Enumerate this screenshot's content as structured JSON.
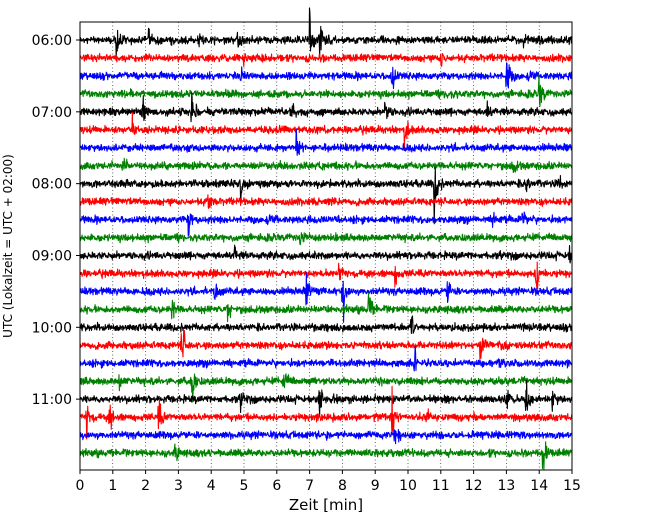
{
  "chart_data": {
    "type": "line",
    "xlabel": "Zeit  [min]",
    "ylabel": "UTC (Lokalzeit = UTC + 02:00)",
    "xlim": [
      0,
      15
    ],
    "x_ticks": [
      "0",
      "1",
      "2",
      "3",
      "4",
      "5",
      "6",
      "7",
      "8",
      "9",
      "10",
      "11",
      "12",
      "13",
      "14",
      "15"
    ],
    "y_tick_labels": [
      "06:00",
      "07:00",
      "08:00",
      "09:00",
      "10:00",
      "11:00"
    ],
    "grid": "vertical dotted lines at every minute",
    "trace_interval_minutes": 15,
    "trace_colors": [
      "#000000",
      "#ff0000",
      "#0000ff",
      "#008000"
    ],
    "traces": [
      {
        "start": "06:00",
        "color": "#000000",
        "events": [
          {
            "t": 1.1,
            "amp": 0.45
          },
          {
            "t": 2.1,
            "amp": 0.3
          },
          {
            "t": 3.6,
            "amp": 0.25
          },
          {
            "t": 4.8,
            "amp": 0.4
          },
          {
            "t": 7.0,
            "amp": 0.9
          },
          {
            "t": 7.3,
            "amp": 0.7
          },
          {
            "t": 13.5,
            "amp": 0.3
          }
        ]
      },
      {
        "start": "06:15",
        "color": "#ff0000",
        "events": [
          {
            "t": 5.0,
            "amp": 0.3
          },
          {
            "t": 11.0,
            "amp": 0.3
          }
        ]
      },
      {
        "start": "06:30",
        "color": "#0000ff",
        "events": [
          {
            "t": 4.9,
            "amp": 0.35
          },
          {
            "t": 9.5,
            "amp": 0.6
          },
          {
            "t": 13.0,
            "amp": 1.0
          }
        ]
      },
      {
        "start": "06:45",
        "color": "#008000",
        "events": [
          {
            "t": 11.2,
            "amp": 0.3
          },
          {
            "t": 14.0,
            "amp": 0.7
          }
        ]
      },
      {
        "start": "07:00",
        "color": "#000000",
        "events": [
          {
            "t": 1.9,
            "amp": 0.8
          },
          {
            "t": 3.4,
            "amp": 1.0
          },
          {
            "t": 6.4,
            "amp": 0.4
          },
          {
            "t": 9.3,
            "amp": 0.5
          },
          {
            "t": 12.4,
            "amp": 0.3
          }
        ]
      },
      {
        "start": "07:15",
        "color": "#ff0000",
        "events": [
          {
            "t": 1.6,
            "amp": 0.55
          },
          {
            "t": 9.9,
            "amp": 0.55
          }
        ]
      },
      {
        "start": "07:30",
        "color": "#0000ff",
        "events": [
          {
            "t": 6.6,
            "amp": 0.55
          }
        ]
      },
      {
        "start": "07:45",
        "color": "#008000",
        "events": [
          {
            "t": 1.3,
            "amp": 0.3
          },
          {
            "t": 13.2,
            "amp": 0.3
          }
        ]
      },
      {
        "start": "08:00",
        "color": "#000000",
        "events": [
          {
            "t": 4.9,
            "amp": 0.75
          },
          {
            "t": 10.8,
            "amp": 1.0
          },
          {
            "t": 13.6,
            "amp": 0.4
          },
          {
            "t": 14.6,
            "amp": 0.3
          }
        ]
      },
      {
        "start": "08:15",
        "color": "#ff0000",
        "events": [
          {
            "t": 3.9,
            "amp": 0.4
          }
        ]
      },
      {
        "start": "08:30",
        "color": "#0000ff",
        "events": [
          {
            "t": 3.3,
            "amp": 0.5
          },
          {
            "t": 12.6,
            "amp": 0.35
          },
          {
            "t": 13.5,
            "amp": 0.45
          }
        ]
      },
      {
        "start": "08:45",
        "color": "#008000",
        "events": [
          {
            "t": 6.7,
            "amp": 0.25
          }
        ]
      },
      {
        "start": "09:00",
        "color": "#000000",
        "events": [
          {
            "t": 4.7,
            "amp": 0.3
          },
          {
            "t": 14.9,
            "amp": 0.3
          }
        ]
      },
      {
        "start": "09:15",
        "color": "#ff0000",
        "events": [
          {
            "t": 7.9,
            "amp": 0.35
          },
          {
            "t": 9.6,
            "amp": 0.35
          },
          {
            "t": 13.9,
            "amp": 1.0
          }
        ]
      },
      {
        "start": "09:30",
        "color": "#0000ff",
        "events": [
          {
            "t": 4.1,
            "amp": 0.4
          },
          {
            "t": 6.9,
            "amp": 0.55
          },
          {
            "t": 8.0,
            "amp": 1.0
          },
          {
            "t": 11.2,
            "amp": 0.5
          }
        ]
      },
      {
        "start": "09:45",
        "color": "#008000",
        "events": [
          {
            "t": 2.8,
            "amp": 0.5
          },
          {
            "t": 4.5,
            "amp": 0.4
          },
          {
            "t": 8.8,
            "amp": 0.7
          }
        ]
      },
      {
        "start": "10:00",
        "color": "#000000",
        "events": [
          {
            "t": 10.1,
            "amp": 0.5
          }
        ]
      },
      {
        "start": "10:15",
        "color": "#ff0000",
        "events": [
          {
            "t": 3.1,
            "amp": 0.9
          },
          {
            "t": 12.2,
            "amp": 0.5
          }
        ]
      },
      {
        "start": "10:30",
        "color": "#0000ff",
        "events": [
          {
            "t": 10.2,
            "amp": 0.45
          }
        ]
      },
      {
        "start": "10:45",
        "color": "#008000",
        "events": [
          {
            "t": 1.2,
            "amp": 0.3
          },
          {
            "t": 3.4,
            "amp": 0.9
          },
          {
            "t": 6.2,
            "amp": 0.5
          }
        ]
      },
      {
        "start": "11:00",
        "color": "#000000",
        "events": [
          {
            "t": 4.9,
            "amp": 0.3
          },
          {
            "t": 7.3,
            "amp": 0.7
          },
          {
            "t": 13.0,
            "amp": 0.6
          },
          {
            "t": 13.6,
            "amp": 1.0
          },
          {
            "t": 14.4,
            "amp": 0.35
          }
        ]
      },
      {
        "start": "11:15",
        "color": "#ff0000",
        "events": [
          {
            "t": 0.2,
            "amp": 0.6
          },
          {
            "t": 0.9,
            "amp": 0.5
          },
          {
            "t": 2.4,
            "amp": 0.6
          },
          {
            "t": 9.5,
            "amp": 0.8
          },
          {
            "t": 10.6,
            "amp": 0.4
          }
        ]
      },
      {
        "start": "11:30",
        "color": "#0000ff",
        "events": [
          {
            "t": 9.6,
            "amp": 0.6
          }
        ]
      },
      {
        "start": "11:45",
        "color": "#008000",
        "events": [
          {
            "t": 2.9,
            "amp": 0.3
          },
          {
            "t": 14.1,
            "amp": 0.7
          }
        ]
      }
    ]
  }
}
